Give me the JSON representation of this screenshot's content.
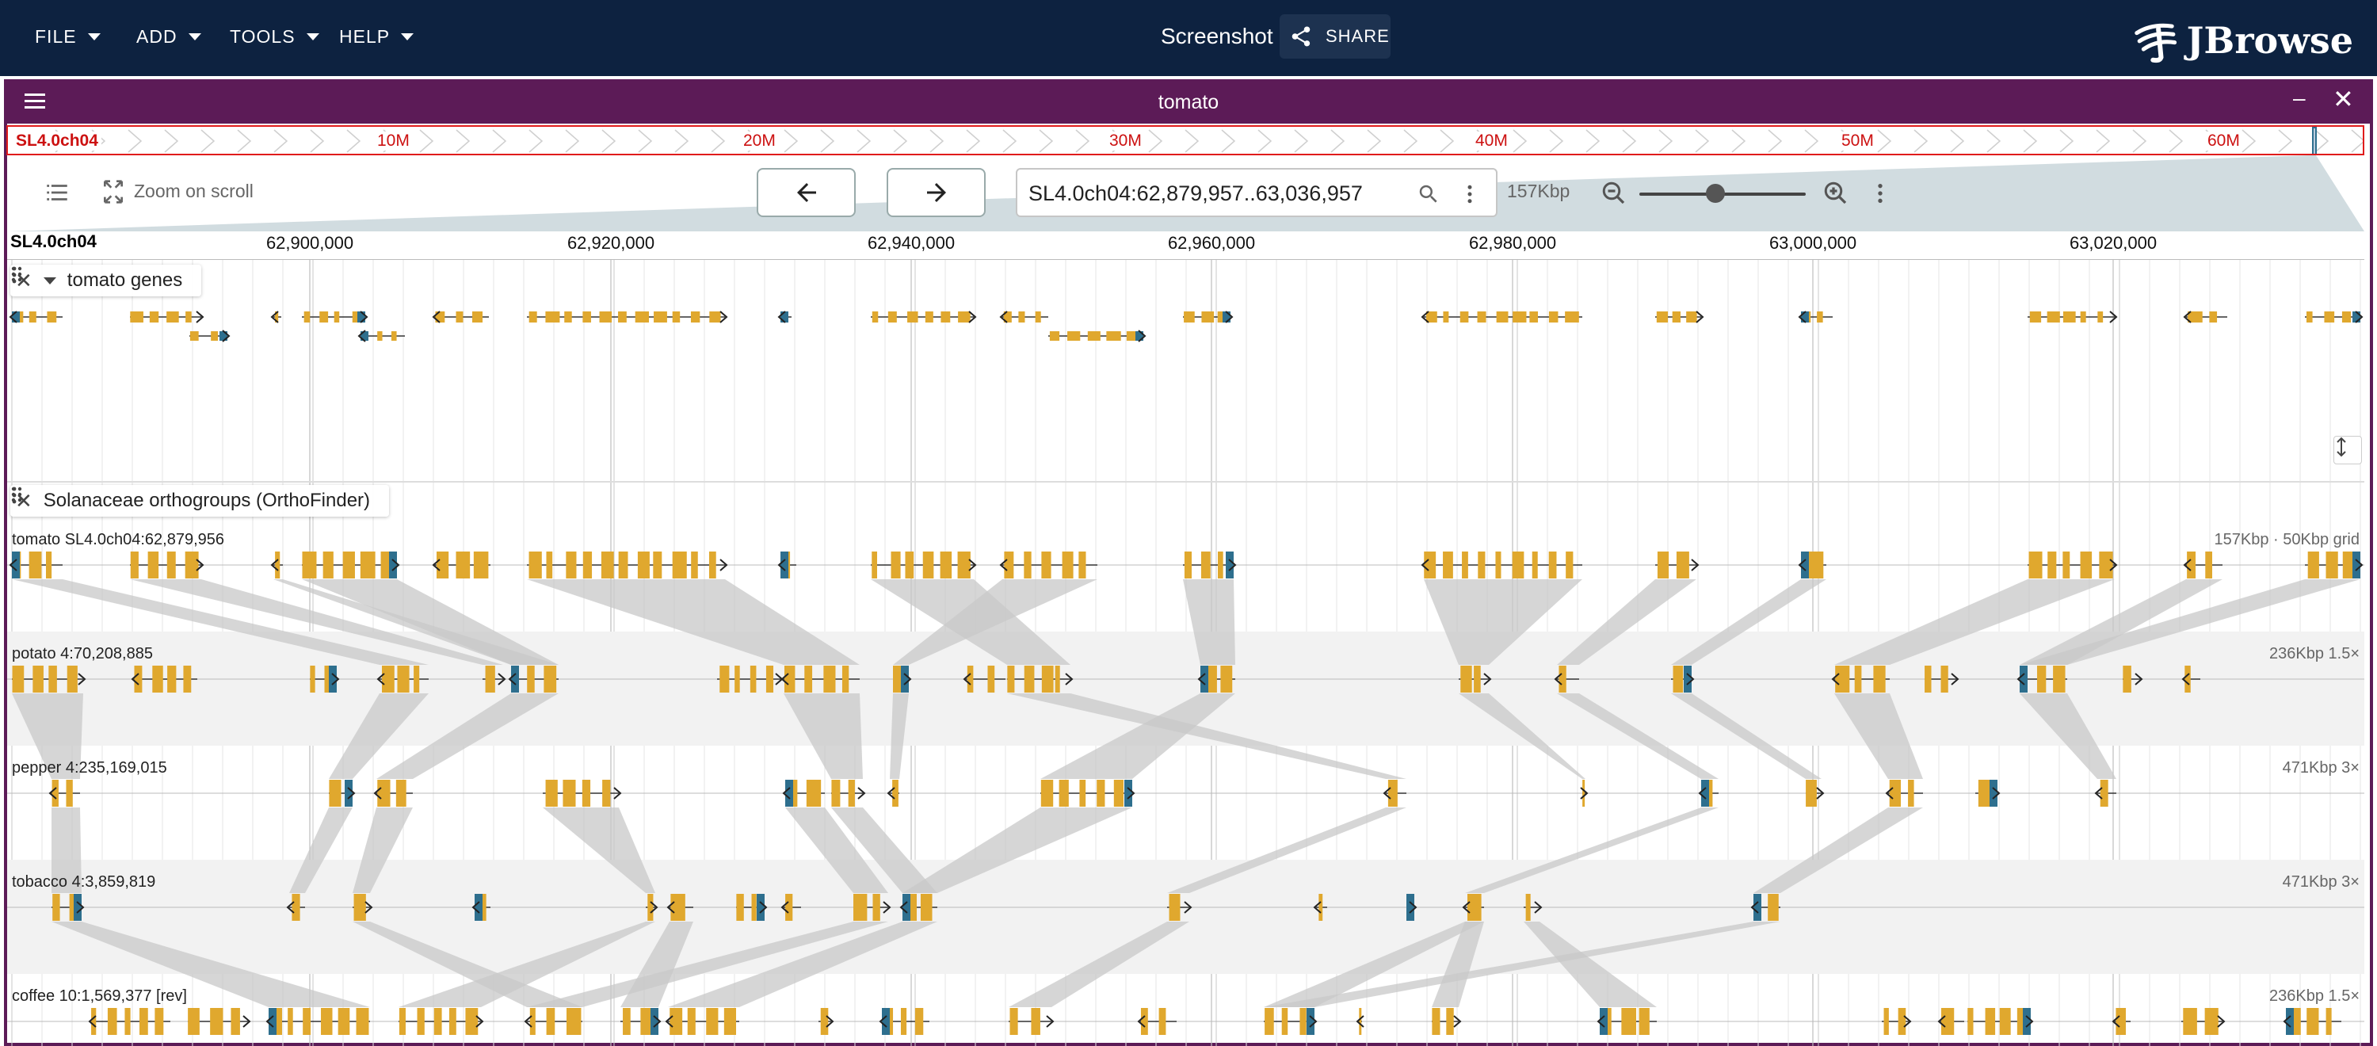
{
  "app": {
    "menus": [
      "FILE",
      "ADD",
      "TOOLS",
      "HELP"
    ],
    "session_title": "Screenshot",
    "share_label": "SHARE",
    "logo_text": "JBrowse"
  },
  "view": {
    "title": "tomato",
    "overview": {
      "refname": "SL4.0ch04",
      "labels": [
        "10M",
        "20M",
        "30M",
        "40M",
        "50M",
        "60M"
      ]
    },
    "toolbar": {
      "zoom_on_scroll_label": "Zoom on scroll",
      "location": "SL4.0ch04:62,879,957..63,036,957",
      "bp_per_view": "157Kbp"
    },
    "scalebar": {
      "refname": "SL4.0ch04",
      "coords": [
        "62,900,000",
        "62,920,000",
        "62,940,000",
        "62,960,000",
        "62,980,000",
        "63,000,000",
        "63,020,000"
      ]
    }
  },
  "tracks": {
    "genes": {
      "name": "tomato genes"
    },
    "synteny": {
      "name": "Solanaceae orthogroups (OrthoFinder)",
      "rows": [
        {
          "label": "tomato SL4.0ch04:62,879,956",
          "info": "157Kbp · 50Kbp grid"
        },
        {
          "label": "potato 4:70,208,885",
          "info": "236Kbp 1.5×"
        },
        {
          "label": "pepper 4:235,169,015",
          "info": "471Kbp 3×"
        },
        {
          "label": "tobacco 4:3,859,819",
          "info": "471Kbp 3×"
        },
        {
          "label": "coffee 10:1,569,377 [rev]",
          "info": "236Kbp 1.5×"
        }
      ]
    }
  },
  "colors": {
    "appbar": "#0d2240",
    "view_header": "#5c1b57",
    "exon": "#e0a82e",
    "utr": "#2e6f8e",
    "overview_red": "#e01b1b",
    "synteny_ribbon": "#c8c8c8"
  },
  "icons": [
    "caret-down-icon",
    "share-icon",
    "jbrowse-logo-icon",
    "hamburger-icon",
    "minimize-icon",
    "close-icon",
    "track-list-icon",
    "zoom-on-scroll-icon",
    "arrow-left-icon",
    "arrow-right-icon",
    "search-icon",
    "more-vert-icon",
    "zoom-out-icon",
    "zoom-in-icon",
    "drag-handle-icon",
    "caret-icon",
    "resize-icon"
  ]
}
